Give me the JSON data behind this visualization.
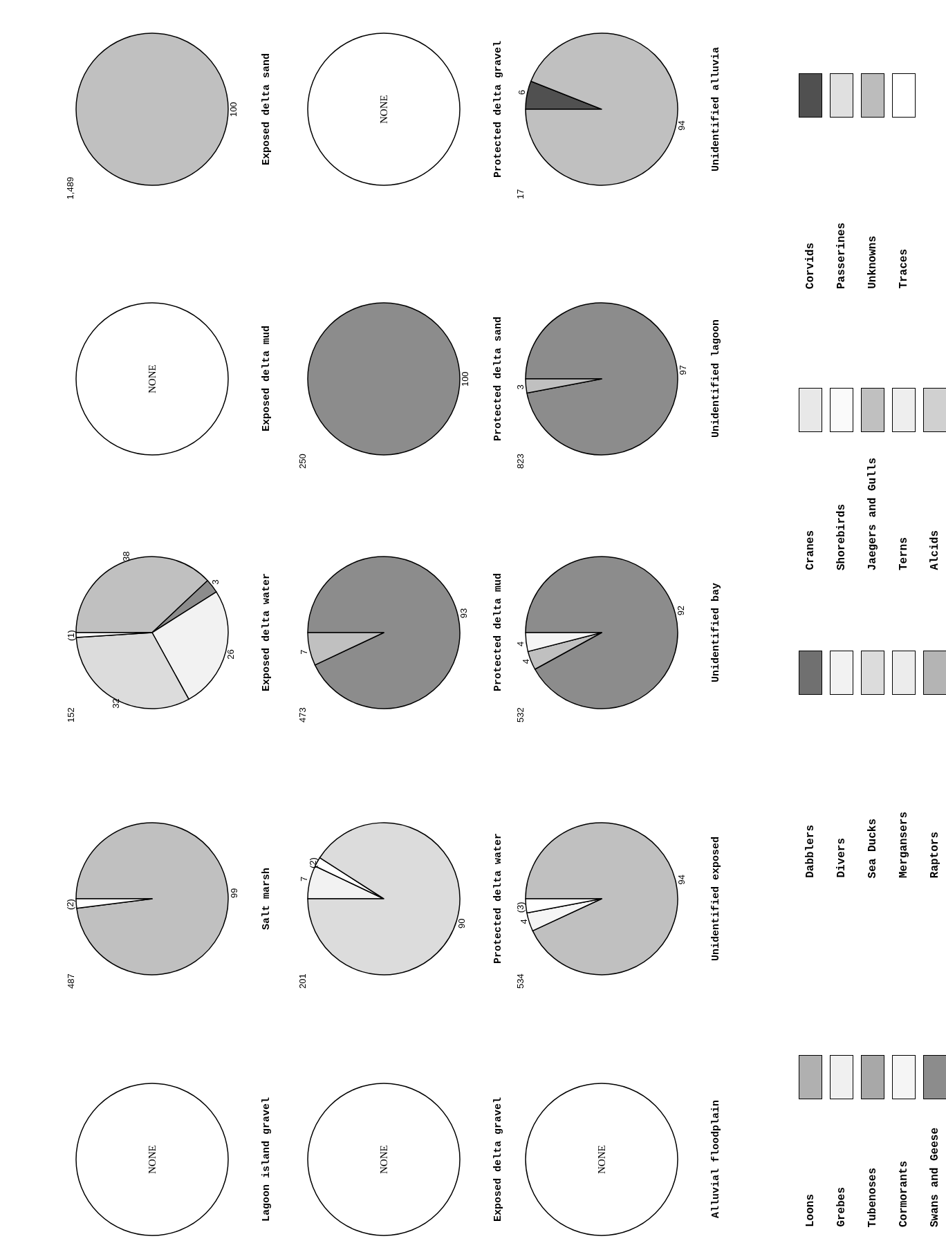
{
  "chart_data": [
    {
      "type": "other",
      "title": "Lagoon island gravel",
      "annotations": [
        "NONE"
      ]
    },
    {
      "type": "pie",
      "title": "Salt marsh",
      "annotations": [
        "487"
      ],
      "categories": [
        null,
        null
      ],
      "values": [
        99,
        2
      ],
      "value_labels": [
        "99",
        "(2)"
      ],
      "colors": [
        "#c0c0c0",
        "#ffffff"
      ]
    },
    {
      "type": "pie",
      "title": "Exposed delta water",
      "annotations": [
        "152"
      ],
      "categories": [
        null,
        null,
        null,
        null,
        null
      ],
      "values": [
        38,
        3,
        26,
        32,
        1
      ],
      "value_labels": [
        "38",
        "3",
        "26",
        "32",
        "(1)"
      ],
      "colors": [
        "#c0c0c0",
        "#8c8c8c",
        "#f2f2f2",
        "#dcdcdc",
        "#ffffff"
      ]
    },
    {
      "type": "other",
      "title": "Exposed delta mud",
      "annotations": [
        "NONE"
      ]
    },
    {
      "type": "pie",
      "title": "Exposed delta sand",
      "annotations": [
        "1,489"
      ],
      "categories": [
        null
      ],
      "values": [
        100
      ],
      "value_labels": [
        "100"
      ],
      "colors": [
        "#c0c0c0"
      ]
    },
    {
      "type": "other",
      "title": "Exposed delta gravel",
      "annotations": [
        "NONE"
      ]
    },
    {
      "type": "pie",
      "title": "Protected delta water",
      "annotations": [
        "201"
      ],
      "categories": [
        null,
        null,
        null
      ],
      "values": [
        7,
        2,
        90
      ],
      "value_labels": [
        "7",
        "(2)",
        "90"
      ],
      "colors": [
        "#f2f2f2",
        "#ffffff",
        "#dcdcdc"
      ]
    },
    {
      "type": "pie",
      "title": "Protected delta mud",
      "annotations": [
        "473"
      ],
      "categories": [
        null,
        null
      ],
      "values": [
        93,
        7
      ],
      "value_labels": [
        "93",
        "7"
      ],
      "colors": [
        "#8c8c8c",
        "#c0c0c0"
      ]
    },
    {
      "type": "pie",
      "title": "Protected delta sand",
      "annotations": [
        "250"
      ],
      "categories": [
        null
      ],
      "values": [
        100
      ],
      "value_labels": [
        "100"
      ],
      "colors": [
        "#8c8c8c"
      ]
    },
    {
      "type": "other",
      "title": "Protected delta gravel",
      "annotations": [
        "NONE"
      ]
    },
    {
      "type": "other",
      "title": "Alluvial floodplain",
      "annotations": [
        "NONE"
      ]
    },
    {
      "type": "pie",
      "title": "Unidentified exposed",
      "annotations": [
        "534"
      ],
      "categories": [
        null,
        null,
        null
      ],
      "values": [
        94,
        4,
        3
      ],
      "value_labels": [
        "94",
        "4",
        "(3)"
      ],
      "colors": [
        "#c0c0c0",
        "#f5f5f5",
        "#ffffff"
      ]
    },
    {
      "type": "pie",
      "title": "Unidentified bay",
      "annotations": [
        "532"
      ],
      "categories": [
        null,
        null,
        null
      ],
      "values": [
        92,
        4,
        4
      ],
      "value_labels": [
        "92",
        "4",
        "4"
      ],
      "colors": [
        "#8c8c8c",
        "#c0c0c0",
        "#f5f5f5"
      ]
    },
    {
      "type": "pie",
      "title": "Unidentified lagoon",
      "annotations": [
        "823"
      ],
      "categories": [
        null,
        null
      ],
      "values": [
        97,
        3
      ],
      "value_labels": [
        "97",
        "3"
      ],
      "colors": [
        "#8c8c8c",
        "#c0c0c0"
      ]
    },
    {
      "type": "pie",
      "title": "Unidentified alluvia",
      "annotations": [
        "17"
      ],
      "categories": [
        null,
        null
      ],
      "values": [
        6,
        94
      ],
      "value_labels": [
        "6",
        "94"
      ],
      "colors": [
        "#505050",
        "#c0c0c0"
      ]
    },
    {
      "type": "other",
      "categories": [
        "Loons",
        "Grebes",
        "Tubenoses",
        "Cormorants",
        "Swans and Geese",
        "Dabblers",
        "Divers",
        "Sea Ducks",
        "Mergansers",
        "Raptors",
        "Cranes",
        "Shorebirds",
        "Jaegers and Gulls",
        "Terns",
        "Alcids",
        "Corvids",
        "Passerines",
        "Unknowns",
        "Traces"
      ],
      "colors": [
        "#b0b0b0",
        "#f0f0f0",
        "#a8a8a8",
        "#f5f5f5",
        "#8c8c8c",
        "#707070",
        "#f2f2f2",
        "#dcdcdc",
        "#ececec",
        "#b4b4b4",
        "#e8e8e8",
        "#fafafa",
        "#c0c0c0",
        "#eeeeee",
        "#d0d0d0",
        "#505050",
        "#e0e0e0",
        "#bcbcbc",
        "#ffffff"
      ]
    }
  ]
}
